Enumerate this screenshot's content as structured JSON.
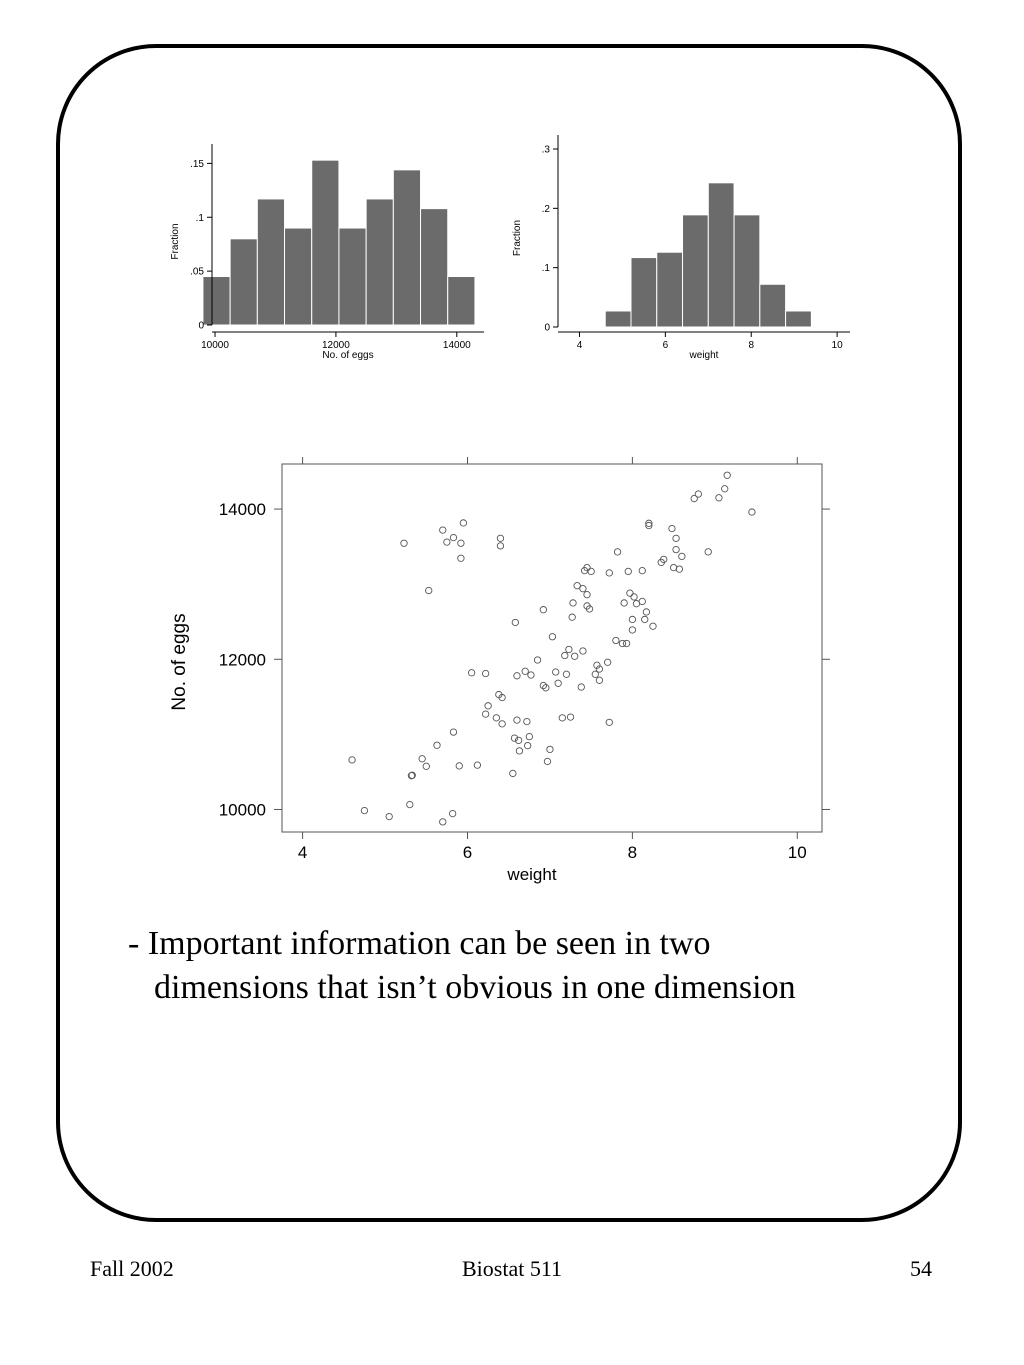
{
  "slide": {
    "bullet_line1": "- Important information can be seen in two",
    "bullet_line2": "dimensions that isn’t obvious in one dimension"
  },
  "footer": {
    "left": "Fall 2002",
    "center": "Biostat 511",
    "right": "54"
  },
  "colors": {
    "bar_fill": "#6b6b6b",
    "bar_edge": "#ffffff",
    "marker": "#555555",
    "frame": "#000000"
  },
  "chart_data": [
    {
      "type": "bar",
      "subtype": "histogram",
      "xlabel": "No. of eggs",
      "ylabel": "Fraction",
      "xlim": [
        9950,
        14450
      ],
      "ylim": [
        0,
        0.155
      ],
      "xticks": [
        10000,
        12000,
        14000
      ],
      "xtick_labels": [
        "10000",
        "12000",
        "14000"
      ],
      "yticks": [
        0,
        0.05,
        0.1,
        0.15
      ],
      "ytick_labels": [
        "0",
        ".05",
        ".1",
        ".15"
      ],
      "bin_edges": [
        9800,
        10250,
        10700,
        11150,
        11600,
        12050,
        12500,
        12950,
        13400,
        13850,
        14300
      ],
      "values": [
        0.045,
        0.08,
        0.117,
        0.09,
        0.153,
        0.09,
        0.117,
        0.144,
        0.108,
        0.045
      ]
    },
    {
      "type": "bar",
      "subtype": "histogram",
      "xlabel": "weight",
      "ylabel": "Fraction",
      "xlim": [
        3.5,
        10.3
      ],
      "ylim": [
        0,
        0.3
      ],
      "xticks": [
        4,
        6,
        8,
        10
      ],
      "xtick_labels": [
        "4",
        "6",
        "8",
        "10"
      ],
      "yticks": [
        0,
        0.1,
        0.2,
        0.3
      ],
      "ytick_labels": [
        "0",
        ".1",
        ".2",
        ".3"
      ],
      "bin_edges": [
        4.6,
        5.2,
        5.8,
        6.4,
        7.0,
        7.6,
        8.2,
        8.8,
        9.4
      ],
      "values": [
        0.027,
        0.117,
        0.126,
        0.189,
        0.243,
        0.189,
        0.072,
        0.027
      ]
    },
    {
      "type": "scatter",
      "xlabel": "weight",
      "ylabel": "No. of eggs",
      "xlim": [
        3.75,
        10.3
      ],
      "ylim": [
        9700,
        14600
      ],
      "xticks": [
        4,
        6,
        8,
        10
      ],
      "xtick_labels": [
        "4",
        "6",
        "8",
        "10"
      ],
      "yticks": [
        10000,
        12000,
        14000
      ],
      "ytick_labels": [
        "10000",
        "12000",
        "14000"
      ],
      "points": [
        [
          4.6,
          10660
        ],
        [
          4.75,
          9985
        ],
        [
          5.05,
          9905
        ],
        [
          5.23,
          13545
        ],
        [
          5.3,
          10065
        ],
        [
          5.32,
          10450
        ],
        [
          5.33,
          10455
        ],
        [
          5.45,
          10675
        ],
        [
          5.5,
          10575
        ],
        [
          5.53,
          12915
        ],
        [
          5.63,
          10855
        ],
        [
          5.7,
          13720
        ],
        [
          5.7,
          9835
        ],
        [
          5.75,
          13560
        ],
        [
          5.82,
          9945
        ],
        [
          5.83,
          13620
        ],
        [
          5.83,
          11030
        ],
        [
          5.9,
          10580
        ],
        [
          5.92,
          13545
        ],
        [
          5.92,
          13345
        ],
        [
          5.95,
          13815
        ],
        [
          6.05,
          11820
        ],
        [
          6.12,
          10590
        ],
        [
          6.22,
          11270
        ],
        [
          6.22,
          11810
        ],
        [
          6.25,
          11380
        ],
        [
          6.35,
          11220
        ],
        [
          6.38,
          11530
        ],
        [
          6.4,
          13610
        ],
        [
          6.4,
          13510
        ],
        [
          6.42,
          11490
        ],
        [
          6.42,
          11140
        ],
        [
          6.55,
          10480
        ],
        [
          6.57,
          10950
        ],
        [
          6.58,
          12490
        ],
        [
          6.6,
          11190
        ],
        [
          6.6,
          11780
        ],
        [
          6.62,
          10920
        ],
        [
          6.63,
          10780
        ],
        [
          6.7,
          11840
        ],
        [
          6.72,
          11170
        ],
        [
          6.73,
          10850
        ],
        [
          6.75,
          10970
        ],
        [
          6.77,
          11790
        ],
        [
          6.85,
          11990
        ],
        [
          6.92,
          12660
        ],
        [
          6.92,
          11650
        ],
        [
          6.95,
          11620
        ],
        [
          6.97,
          10640
        ],
        [
          7.0,
          10800
        ],
        [
          7.03,
          12300
        ],
        [
          7.07,
          11830
        ],
        [
          7.1,
          11680
        ],
        [
          7.15,
          11220
        ],
        [
          7.18,
          12050
        ],
        [
          7.2,
          11800
        ],
        [
          7.23,
          12130
        ],
        [
          7.25,
          11230
        ],
        [
          7.27,
          12560
        ],
        [
          7.28,
          12750
        ],
        [
          7.3,
          12040
        ],
        [
          7.33,
          12980
        ],
        [
          7.38,
          11630
        ],
        [
          7.4,
          12110
        ],
        [
          7.4,
          12940
        ],
        [
          7.42,
          13180
        ],
        [
          7.45,
          12710
        ],
        [
          7.45,
          12860
        ],
        [
          7.45,
          13220
        ],
        [
          7.48,
          12670
        ],
        [
          7.5,
          13170
        ],
        [
          7.55,
          11800
        ],
        [
          7.57,
          11920
        ],
        [
          7.6,
          11720
        ],
        [
          7.6,
          11870
        ],
        [
          7.7,
          11960
        ],
        [
          7.72,
          11160
        ],
        [
          7.72,
          13150
        ],
        [
          7.8,
          12250
        ],
        [
          7.82,
          13430
        ],
        [
          7.88,
          12210
        ],
        [
          7.9,
          12750
        ],
        [
          7.93,
          12210
        ],
        [
          7.95,
          13170
        ],
        [
          7.97,
          12880
        ],
        [
          8.0,
          12390
        ],
        [
          8.0,
          12530
        ],
        [
          8.02,
          12830
        ],
        [
          8.05,
          12740
        ],
        [
          8.12,
          13180
        ],
        [
          8.12,
          12770
        ],
        [
          8.15,
          12530
        ],
        [
          8.17,
          12630
        ],
        [
          8.2,
          13810
        ],
        [
          8.2,
          13780
        ],
        [
          8.25,
          12440
        ],
        [
          8.35,
          13290
        ],
        [
          8.38,
          13330
        ],
        [
          8.48,
          13740
        ],
        [
          8.5,
          13220
        ],
        [
          8.53,
          13460
        ],
        [
          8.53,
          13610
        ],
        [
          8.57,
          13200
        ],
        [
          8.6,
          13370
        ],
        [
          8.75,
          14140
        ],
        [
          8.8,
          14200
        ],
        [
          8.92,
          13430
        ],
        [
          9.05,
          14150
        ],
        [
          9.12,
          14270
        ],
        [
          9.15,
          14450
        ],
        [
          9.45,
          13960
        ]
      ]
    }
  ]
}
